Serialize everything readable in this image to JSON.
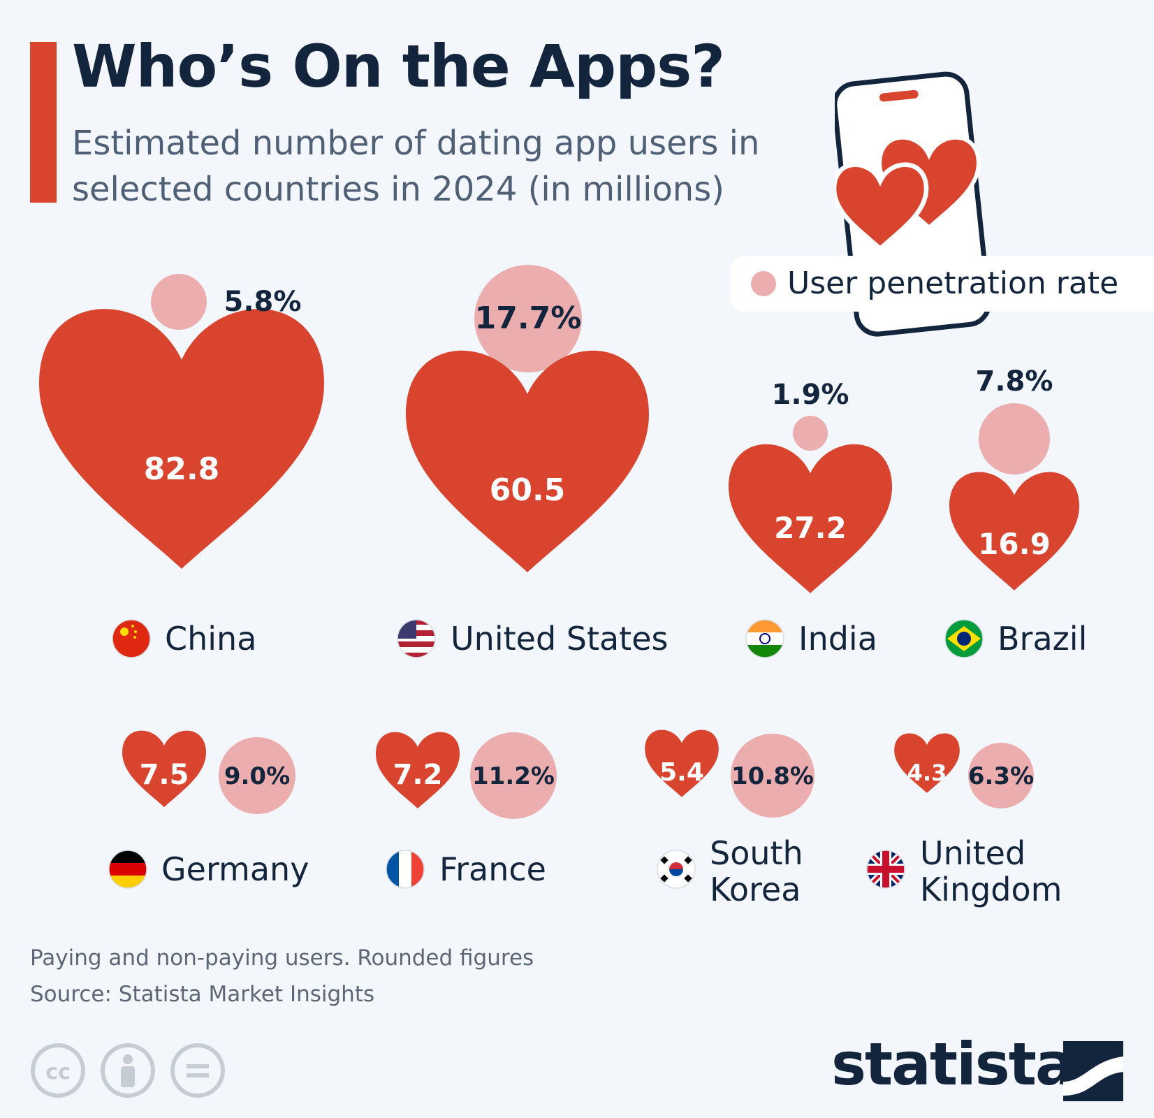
{
  "header": {
    "title": "Who’s On the Apps?",
    "subtitle": "Estimated number of dating app users in selected countries in 2024 (in millions)"
  },
  "legend": {
    "label": "User penetration rate",
    "color": "#ebadad"
  },
  "colors": {
    "heart": "#d9442f",
    "circle": "#ebadad",
    "text_dark": "#13243d",
    "background": "#f3f6fa"
  },
  "chart_data": {
    "type": "heart-bubble",
    "title": "Who’s On the Apps?",
    "subtitle": "Estimated number of dating app users in selected countries in 2024 (in millions)",
    "series": [
      {
        "name": "Dating app users (millions)",
        "values": [
          82.8,
          60.5,
          27.2,
          16.9,
          7.5,
          7.2,
          5.4,
          4.3
        ]
      },
      {
        "name": "User penetration rate (%)",
        "values": [
          5.8,
          17.7,
          1.9,
          7.8,
          9.0,
          11.2,
          10.8,
          6.3
        ]
      }
    ],
    "categories": [
      "China",
      "United States",
      "India",
      "Brazil",
      "Germany",
      "France",
      "South Korea",
      "United Kingdom"
    ],
    "items": [
      {
        "country": "China",
        "label_lines": [
          "China"
        ],
        "users": 82.8,
        "users_label": "82.8",
        "rate": 5.8,
        "rate_label": "5.8%",
        "flag": "china-flag-icon"
      },
      {
        "country": "United States",
        "label_lines": [
          "United States"
        ],
        "users": 60.5,
        "users_label": "60.5",
        "rate": 17.7,
        "rate_label": "17.7%",
        "flag": "usa-flag-icon"
      },
      {
        "country": "India",
        "label_lines": [
          "India"
        ],
        "users": 27.2,
        "users_label": "27.2",
        "rate": 1.9,
        "rate_label": "1.9%",
        "flag": "india-flag-icon"
      },
      {
        "country": "Brazil",
        "label_lines": [
          "Brazil"
        ],
        "users": 16.9,
        "users_label": "16.9",
        "rate": 7.8,
        "rate_label": "7.8%",
        "flag": "brazil-flag-icon"
      },
      {
        "country": "Germany",
        "label_lines": [
          "Germany"
        ],
        "users": 7.5,
        "users_label": "7.5",
        "rate": 9.0,
        "rate_label": "9.0%",
        "flag": "germany-flag-icon"
      },
      {
        "country": "France",
        "label_lines": [
          "France"
        ],
        "users": 7.2,
        "users_label": "7.2",
        "rate": 11.2,
        "rate_label": "11.2%",
        "flag": "france-flag-icon"
      },
      {
        "country": "South Korea",
        "label_lines": [
          "South",
          "Korea"
        ],
        "users": 5.4,
        "users_label": "5.4",
        "rate": 10.8,
        "rate_label": "10.8%",
        "flag": "south-korea-flag-icon"
      },
      {
        "country": "United Kingdom",
        "label_lines": [
          "United",
          "Kingdom"
        ],
        "users": 4.3,
        "users_label": "4.3",
        "rate": 6.3,
        "rate_label": "6.3%",
        "flag": "uk-flag-icon"
      }
    ]
  },
  "footer": {
    "note": "Paying and non-paying users. Rounded figures",
    "source": "Source: Statista Market Insights",
    "brand": "statista",
    "license_icons": [
      "cc-icon",
      "attribution-icon",
      "no-derivatives-icon"
    ]
  }
}
